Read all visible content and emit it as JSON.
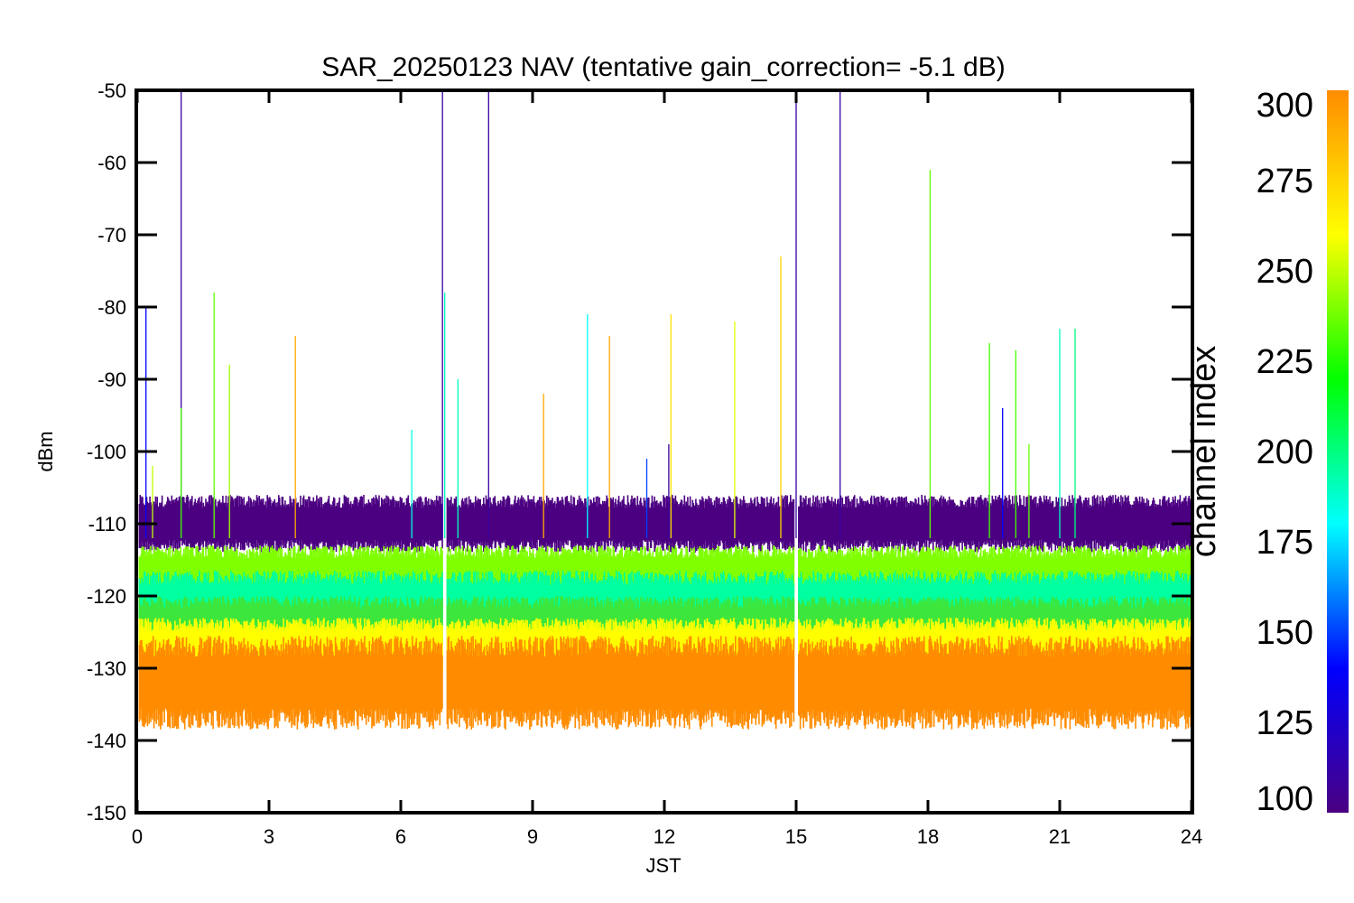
{
  "chart_data": {
    "type": "line",
    "title": "SAR_20250123 NAV (tentative gain_correction= -5.1 dB)",
    "xlabel": "JST",
    "ylabel": "dBm",
    "xlim": [
      0,
      24
    ],
    "ylim": [
      -150,
      -50
    ],
    "x_ticks": [
      "0",
      "3",
      "6",
      "9",
      "12",
      "15",
      "18",
      "21",
      "24"
    ],
    "y_ticks": [
      "-50",
      "-60",
      "-70",
      "-80",
      "-90",
      "-100",
      "-110",
      "-120",
      "-130",
      "-140",
      "-150"
    ],
    "grid": false,
    "data_gaps_jst": [
      7.0,
      15.0
    ],
    "series": [
      {
        "channel_index": 110,
        "color": "#4b0082",
        "y_center": -110,
        "y_low": -114,
        "y_high": -106
      },
      {
        "channel_index": 255,
        "color": "#7fff00",
        "y_center": -117,
        "y_low": -121,
        "y_high": -113
      },
      {
        "channel_index": 190,
        "color": "#00ffa0",
        "y_center": -121,
        "y_low": -126,
        "y_high": -117
      },
      {
        "channel_index": 230,
        "color": "#3ce63c",
        "y_center": -124,
        "y_low": -128,
        "y_high": -120
      },
      {
        "channel_index": 270,
        "color": "#ffff00",
        "y_center": -127,
        "y_low": -131,
        "y_high": -123
      },
      {
        "channel_index": 290,
        "color": "#ff8c00",
        "y_center": -132,
        "y_low": -139,
        "y_high": -126
      }
    ],
    "spikes": [
      {
        "x": 0.2,
        "y": -80,
        "channel_index": 140
      },
      {
        "x": 0.35,
        "y": -102,
        "channel_index": 250
      },
      {
        "x": 1.0,
        "y": -50,
        "channel_index": 110
      },
      {
        "x": 1.0,
        "y": -94,
        "channel_index": 230
      },
      {
        "x": 1.75,
        "y": -78,
        "channel_index": 235
      },
      {
        "x": 2.1,
        "y": -88,
        "channel_index": 245
      },
      {
        "x": 3.6,
        "y": -84,
        "channel_index": 290
      },
      {
        "x": 6.25,
        "y": -97,
        "channel_index": 185
      },
      {
        "x": 6.95,
        "y": -50,
        "channel_index": 110
      },
      {
        "x": 7.0,
        "y": -78,
        "channel_index": 190
      },
      {
        "x": 7.3,
        "y": -90,
        "channel_index": 190
      },
      {
        "x": 8.0,
        "y": -50,
        "channel_index": 110
      },
      {
        "x": 9.25,
        "y": -92,
        "channel_index": 290
      },
      {
        "x": 10.25,
        "y": -81,
        "channel_index": 180
      },
      {
        "x": 10.75,
        "y": -84,
        "channel_index": 290
      },
      {
        "x": 11.6,
        "y": -101,
        "channel_index": 150
      },
      {
        "x": 12.1,
        "y": -99,
        "channel_index": 110
      },
      {
        "x": 12.15,
        "y": -81,
        "channel_index": 270
      },
      {
        "x": 13.6,
        "y": -82,
        "channel_index": 255
      },
      {
        "x": 14.65,
        "y": -73,
        "channel_index": 275
      },
      {
        "x": 15.0,
        "y": -50,
        "channel_index": 110
      },
      {
        "x": 16.0,
        "y": -50,
        "channel_index": 110
      },
      {
        "x": 18.05,
        "y": -61,
        "channel_index": 235
      },
      {
        "x": 19.4,
        "y": -85,
        "channel_index": 230
      },
      {
        "x": 19.7,
        "y": -94,
        "channel_index": 140
      },
      {
        "x": 20.0,
        "y": -86,
        "channel_index": 230
      },
      {
        "x": 20.3,
        "y": -99,
        "channel_index": 235
      },
      {
        "x": 21.0,
        "y": -83,
        "channel_index": 190
      },
      {
        "x": 21.35,
        "y": -83,
        "channel_index": 200
      }
    ],
    "colorbar": {
      "label": "channel index",
      "range": [
        100,
        300
      ],
      "ticks": [
        "300",
        "275",
        "250",
        "225",
        "200",
        "175",
        "150",
        "125",
        "100"
      ],
      "stops": [
        "#4b0082",
        "#0000ff",
        "#00ffff",
        "#00ff00",
        "#ffff00",
        "#ff8c00"
      ]
    }
  }
}
